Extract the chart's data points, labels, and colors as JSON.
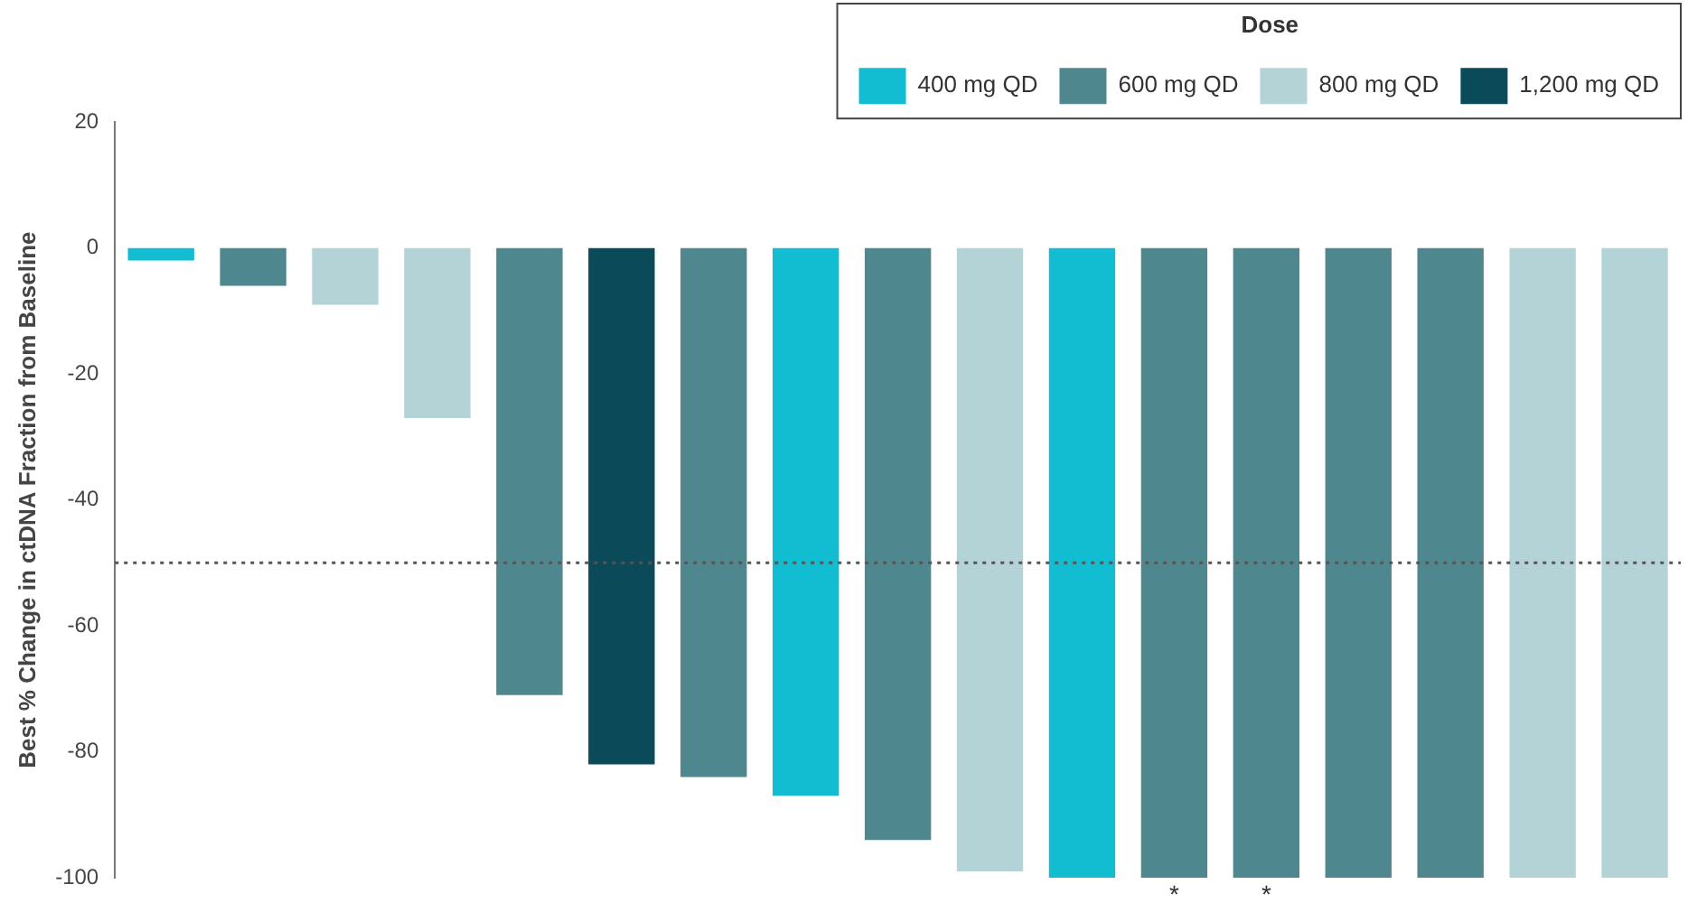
{
  "chart_data": {
    "type": "bar",
    "stacked": true,
    "ylabel": "Best % Change in ctDNA Fraction from Baseline",
    "legend_title": "Dose",
    "legend": "top right",
    "categories": [
      null,
      null,
      null,
      null,
      null,
      null,
      null,
      null,
      null,
      null,
      null,
      null,
      null,
      null,
      null,
      null,
      null
    ],
    "series": [
      {
        "name": "400 mg QD",
        "color": "#12bdd1",
        "values": [
          -2,
          null,
          null,
          null,
          null,
          null,
          null,
          -87,
          null,
          null,
          -100,
          null,
          null,
          null,
          null,
          null,
          null
        ]
      },
      {
        "name": "600 mg QD",
        "color": "#4e878e",
        "values": [
          null,
          -6,
          null,
          null,
          -71,
          null,
          -84,
          null,
          -94,
          null,
          null,
          -100,
          -100,
          -100,
          -100,
          null,
          null
        ],
        "value_labels": [
          null,
          null,
          null,
          null,
          null,
          null,
          null,
          null,
          null,
          null,
          null,
          "*",
          "*",
          null,
          null,
          null,
          null
        ]
      },
      {
        "name": "800 mg QD",
        "color": "#b3d3d7",
        "values": [
          null,
          null,
          -9,
          -27,
          null,
          null,
          null,
          null,
          null,
          -99,
          null,
          null,
          null,
          null,
          null,
          -100,
          -100
        ]
      },
      {
        "name": "1,200 mg QD",
        "color": "#0b4a59",
        "values": [
          null,
          null,
          null,
          null,
          null,
          -82,
          null,
          null,
          null,
          null,
          null,
          null,
          null,
          null,
          null,
          null,
          null
        ]
      }
    ],
    "ylim": [
      -100,
      20
    ],
    "yticks": [
      -100,
      -80,
      -60,
      -40,
      -20,
      0,
      20
    ],
    "grid": false,
    "ref_lines": [
      {
        "axis": "y",
        "value": -50,
        "line_style": "dotted",
        "color": "#555555"
      }
    ]
  }
}
